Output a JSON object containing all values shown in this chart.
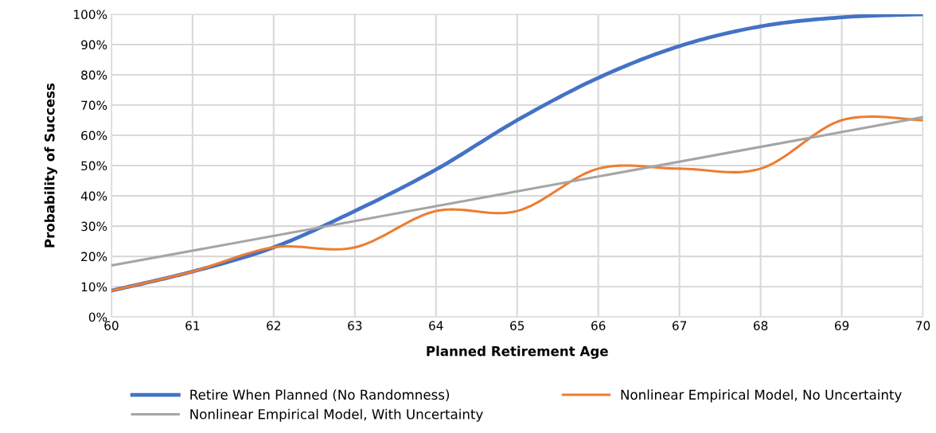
{
  "chart_data": {
    "type": "line",
    "xlabel": "Planned Retirement Age",
    "ylabel": "Probability of Success",
    "x": [
      60,
      61,
      62,
      63,
      64,
      65,
      66,
      67,
      68,
      69,
      70
    ],
    "series": [
      {
        "name": "Retire When Planned (No Randomness)",
        "color": "#4472c4",
        "values": [
          8.7,
          15,
          23,
          35,
          48.7,
          65,
          79,
          89.5,
          96,
          99,
          100
        ]
      },
      {
        "name": "Nonlinear Empirical Model, No Uncertainty",
        "color": "#ed7d31",
        "values": [
          8.7,
          15,
          23,
          23,
          35,
          35,
          49,
          49,
          49,
          65,
          65
        ]
      },
      {
        "name": "Nonlinear Empirical Model, With Uncertainty",
        "color": "#a5a5a5",
        "x": [
          60,
          70
        ],
        "values": [
          17,
          66
        ]
      }
    ],
    "xlim": [
      60,
      70
    ],
    "xticks": [
      60,
      61,
      62,
      63,
      64,
      65,
      66,
      67,
      68,
      69,
      70
    ],
    "ylim": [
      0,
      100
    ],
    "yticks": [
      {
        "value": 0,
        "label": "0%"
      },
      {
        "value": 10,
        "label": "10%"
      },
      {
        "value": 20,
        "label": "20%"
      },
      {
        "value": 30,
        "label": "30%"
      },
      {
        "value": 40,
        "label": "40%"
      },
      {
        "value": 50,
        "label": "50%"
      },
      {
        "value": 60,
        "label": "60%"
      },
      {
        "value": 70,
        "label": "70%"
      },
      {
        "value": 80,
        "label": "80%"
      },
      {
        "value": 90,
        "label": "90%"
      },
      {
        "value": 100,
        "label": "100%"
      }
    ],
    "grid": true,
    "legend": "bottom",
    "marker": "none",
    "line_style": "solid"
  }
}
